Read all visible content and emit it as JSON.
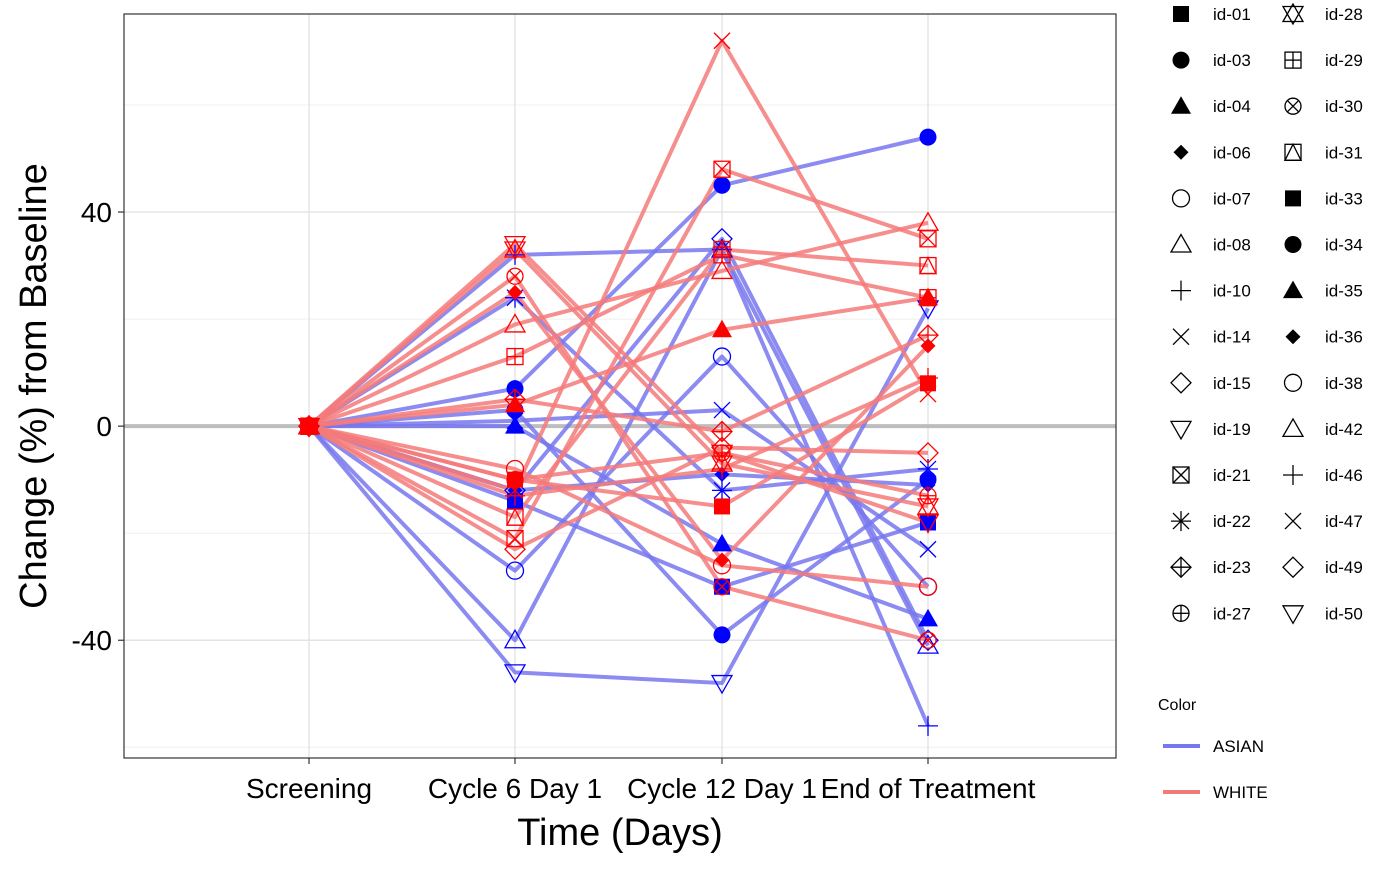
{
  "chart_data": {
    "type": "line",
    "xlabel": "Time (Days)",
    "ylabel": "Change (%) from Baseline",
    "categories": [
      "Screening",
      "Cycle 6 Day 1",
      "Cycle 12 Day 1",
      "End of Treatment"
    ],
    "ylim": [
      -62,
      77
    ],
    "yticks": [
      -40,
      0,
      40
    ],
    "reference_line": 0,
    "grid": true,
    "legend": {
      "position": "right",
      "shape_entries": [
        "id-01",
        "id-03",
        "id-04",
        "id-06",
        "id-07",
        "id-08",
        "id-10",
        "id-14",
        "id-15",
        "id-19",
        "id-21",
        "id-22",
        "id-23",
        "id-27",
        "id-28",
        "id-29",
        "id-30",
        "id-31",
        "id-33",
        "id-34",
        "id-35",
        "id-36",
        "id-38",
        "id-42",
        "id-46",
        "id-47",
        "id-49",
        "id-50"
      ],
      "color_title": "Color",
      "color_entries": [
        {
          "label": "ASIAN",
          "color": "#7777ee"
        },
        {
          "label": "WHITE",
          "color": "#f47a7a"
        }
      ]
    },
    "colors": {
      "ASIAN": {
        "line": "#7777ee",
        "marker": "#0000ff"
      },
      "WHITE": {
        "line": "#f47a7a",
        "marker": "#ff0000"
      }
    },
    "series": [
      {
        "name": "id-01",
        "group": "ASIAN",
        "values": [
          0,
          -14,
          -30,
          -18
        ]
      },
      {
        "name": "id-03",
        "group": "ASIAN",
        "values": [
          0,
          7,
          45,
          54
        ]
      },
      {
        "name": "id-04",
        "group": "ASIAN",
        "values": [
          0,
          0,
          -22,
          -36
        ]
      },
      {
        "name": "id-06",
        "group": "ASIAN",
        "values": [
          0,
          -12,
          -9,
          -11
        ]
      },
      {
        "name": "id-07",
        "group": "ASIAN",
        "values": [
          0,
          -27,
          13,
          -30
        ]
      },
      {
        "name": "id-08",
        "group": "ASIAN",
        "values": [
          0,
          -40,
          33,
          -41
        ]
      },
      {
        "name": "id-10",
        "group": "ASIAN",
        "values": [
          0,
          32,
          33,
          -56
        ]
      },
      {
        "name": "id-14",
        "group": "ASIAN",
        "values": [
          0,
          1,
          3,
          -23
        ]
      },
      {
        "name": "id-15",
        "group": "ASIAN",
        "values": [
          0,
          -12,
          35,
          -40
        ]
      },
      {
        "name": "id-19",
        "group": "ASIAN",
        "values": [
          0,
          -46,
          -48,
          22
        ]
      },
      {
        "name": "id-22",
        "group": "ASIAN",
        "values": [
          0,
          24,
          -12,
          -8
        ]
      },
      {
        "name": "id-34",
        "group": "ASIAN",
        "values": [
          0,
          3,
          -39,
          -10
        ]
      },
      {
        "name": "id-21",
        "group": "WHITE",
        "values": [
          0,
          -21,
          48,
          35
        ]
      },
      {
        "name": "id-23",
        "group": "WHITE",
        "values": [
          0,
          5,
          -1,
          17
        ]
      },
      {
        "name": "id-27",
        "group": "WHITE",
        "values": [
          0,
          -10,
          -5,
          -13
        ]
      },
      {
        "name": "id-28",
        "group": "WHITE",
        "values": [
          0,
          33,
          -7,
          -15
        ]
      },
      {
        "name": "id-29",
        "group": "WHITE",
        "values": [
          0,
          13,
          32,
          24
        ]
      },
      {
        "name": "id-30",
        "group": "WHITE",
        "values": [
          0,
          28,
          -30,
          -40
        ]
      },
      {
        "name": "id-31",
        "group": "WHITE",
        "values": [
          0,
          -17,
          33,
          30
        ]
      },
      {
        "name": "id-33",
        "group": "WHITE",
        "values": [
          0,
          -10,
          -15,
          8
        ]
      },
      {
        "name": "id-35",
        "group": "WHITE",
        "values": [
          0,
          4,
          18,
          24
        ]
      },
      {
        "name": "id-36",
        "group": "WHITE",
        "values": [
          0,
          25,
          -25,
          15
        ]
      },
      {
        "name": "id-38",
        "group": "WHITE",
        "values": [
          0,
          -8,
          -26,
          -30
        ]
      },
      {
        "name": "id-42",
        "group": "WHITE",
        "values": [
          0,
          19,
          29,
          38
        ]
      },
      {
        "name": "id-46",
        "group": "WHITE",
        "values": [
          0,
          -13,
          -8,
          9
        ]
      },
      {
        "name": "id-47",
        "group": "WHITE",
        "values": [
          0,
          -12,
          72,
          6
        ]
      },
      {
        "name": "id-49",
        "group": "WHITE",
        "values": [
          0,
          -23,
          -4,
          -5
        ]
      },
      {
        "name": "id-50",
        "group": "WHITE",
        "values": [
          0,
          34,
          -5,
          -18
        ]
      }
    ]
  }
}
